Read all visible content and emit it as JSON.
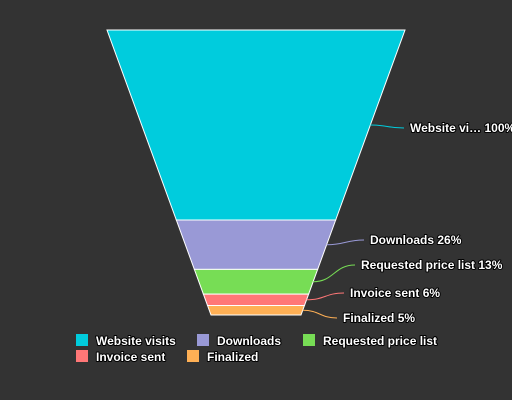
{
  "chart_data": {
    "type": "funnel",
    "categories": [
      "Website visits",
      "Downloads",
      "Requested price list",
      "Invoice sent",
      "Finalized"
    ],
    "values": [
      100,
      26,
      13,
      6,
      5
    ],
    "display_labels": [
      "Website vi…",
      "Downloads",
      "Requested price list",
      "Invoice sent",
      "Finalized"
    ],
    "value_labels": [
      "100%",
      "26%",
      "13%",
      "6%",
      "5%"
    ],
    "colors": [
      "#00ccdd",
      "#9999d6",
      "#77dd55",
      "#ff7777",
      "#ffb055"
    ],
    "legend_position": "bottom",
    "title": ""
  }
}
